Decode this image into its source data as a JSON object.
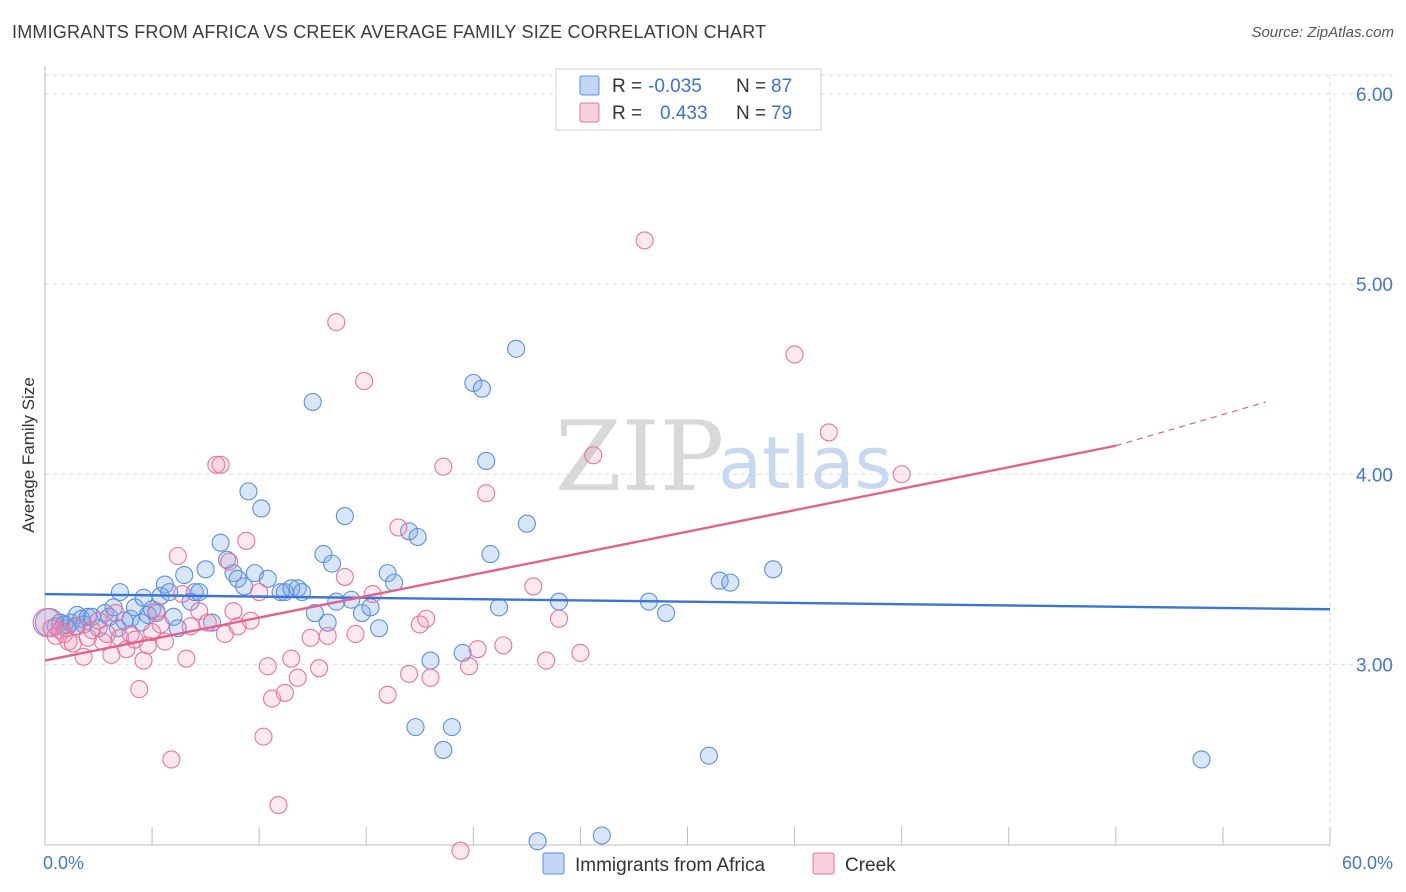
{
  "title": "IMMIGRANTS FROM AFRICA VS CREEK AVERAGE FAMILY SIZE CORRELATION CHART",
  "source": "Source: ZipAtlas.com",
  "watermark": {
    "zip": "ZIP",
    "atlas": "atlas"
  },
  "colors": {
    "blue": "#5b8fdf",
    "blue_fill": "rgba(120,165,235,0.28)",
    "pink": "#e8749c",
    "pink_fill": "rgba(240,150,180,0.22)",
    "axis_text": "#4477cc",
    "grid": "#dddddd"
  },
  "legend": {
    "rows": [
      {
        "r_label": "R =",
        "r_value": "-0.035",
        "n_label": "N =",
        "n_value": "87"
      },
      {
        "r_label": "R =",
        "r_value": "0.433",
        "n_label": "N =",
        "n_value": "79"
      }
    ]
  },
  "chart_data": {
    "type": "scatter",
    "title": "IMMIGRANTS FROM AFRICA VS CREEK AVERAGE FAMILY SIZE CORRELATION CHART",
    "xlabel": "",
    "ylabel": "Average Family Size",
    "xlim": [
      0,
      60
    ],
    "ylim": [
      2.05,
      6.1
    ],
    "x_tick_labels": [
      "0.0%",
      "60.0%"
    ],
    "y_ticks": [
      3.0,
      4.0,
      5.0,
      6.0
    ],
    "y_tick_labels": [
      "3.00",
      "4.00",
      "5.00",
      "6.00"
    ],
    "series": [
      {
        "name": "Immigrants from Africa",
        "color": "blue",
        "r": -0.035,
        "n": 87,
        "trend": {
          "x0": 0,
          "y0": 3.37,
          "x1": 60,
          "y1": 3.29,
          "dash_to": 60
        },
        "points": [
          [
            0.2,
            3.22
          ],
          [
            0.5,
            3.2
          ],
          [
            0.7,
            3.22
          ],
          [
            0.9,
            3.21
          ],
          [
            1.0,
            3.19
          ],
          [
            1.2,
            3.22
          ],
          [
            1.4,
            3.2
          ],
          [
            1.5,
            3.26
          ],
          [
            1.7,
            3.24
          ],
          [
            1.8,
            3.21
          ],
          [
            2.0,
            3.25
          ],
          [
            2.2,
            3.25
          ],
          [
            2.5,
            3.19
          ],
          [
            2.8,
            3.27
          ],
          [
            3.0,
            3.25
          ],
          [
            3.2,
            3.3
          ],
          [
            3.4,
            3.19
          ],
          [
            3.5,
            3.38
          ],
          [
            3.7,
            3.23
          ],
          [
            4.0,
            3.24
          ],
          [
            4.2,
            3.3
          ],
          [
            4.5,
            3.22
          ],
          [
            4.6,
            3.35
          ],
          [
            4.8,
            3.26
          ],
          [
            5.0,
            3.29
          ],
          [
            5.2,
            3.27
          ],
          [
            5.4,
            3.36
          ],
          [
            5.6,
            3.42
          ],
          [
            5.8,
            3.38
          ],
          [
            6.0,
            3.25
          ],
          [
            6.2,
            3.19
          ],
          [
            6.5,
            3.47
          ],
          [
            6.8,
            3.33
          ],
          [
            7.0,
            3.38
          ],
          [
            7.2,
            3.38
          ],
          [
            7.5,
            3.5
          ],
          [
            7.8,
            3.22
          ],
          [
            8.2,
            3.64
          ],
          [
            8.5,
            3.55
          ],
          [
            8.8,
            3.48
          ],
          [
            9.0,
            3.45
          ],
          [
            9.3,
            3.41
          ],
          [
            9.5,
            3.91
          ],
          [
            9.8,
            3.48
          ],
          [
            10.1,
            3.82
          ],
          [
            10.4,
            3.45
          ],
          [
            11.0,
            3.38
          ],
          [
            11.2,
            3.38
          ],
          [
            11.5,
            3.4
          ],
          [
            11.8,
            3.4
          ],
          [
            12.0,
            3.38
          ],
          [
            12.5,
            4.38
          ],
          [
            12.6,
            3.27
          ],
          [
            13.0,
            3.58
          ],
          [
            13.2,
            3.22
          ],
          [
            13.4,
            3.53
          ],
          [
            13.6,
            3.33
          ],
          [
            14.0,
            3.78
          ],
          [
            14.3,
            3.34
          ],
          [
            14.8,
            3.27
          ],
          [
            15.2,
            3.3
          ],
          [
            15.6,
            3.19
          ],
          [
            16.0,
            3.48
          ],
          [
            16.3,
            3.43
          ],
          [
            17.0,
            3.7
          ],
          [
            17.4,
            3.67
          ],
          [
            17.3,
            2.67
          ],
          [
            18.0,
            3.02
          ],
          [
            18.6,
            2.55
          ],
          [
            19.0,
            2.67
          ],
          [
            19.5,
            3.06
          ],
          [
            20.0,
            4.48
          ],
          [
            20.4,
            4.45
          ],
          [
            20.6,
            4.07
          ],
          [
            20.8,
            3.58
          ],
          [
            21.2,
            3.3
          ],
          [
            22.0,
            4.66
          ],
          [
            22.5,
            3.74
          ],
          [
            24.0,
            3.33
          ],
          [
            26.0,
            2.1
          ],
          [
            28.2,
            3.33
          ],
          [
            29.0,
            3.27
          ],
          [
            31.0,
            2.52
          ],
          [
            31.5,
            3.44
          ],
          [
            32.0,
            3.43
          ],
          [
            34.0,
            3.5
          ],
          [
            54.0,
            2.5
          ],
          [
            23.0,
            2.07
          ]
        ]
      },
      {
        "name": "Creek",
        "color": "pink",
        "r": 0.433,
        "n": 79,
        "trend": {
          "x0": 0,
          "y0": 3.02,
          "x1": 50,
          "y1": 4.15,
          "dash_to": 57,
          "dash_y": 4.38
        },
        "points": [
          [
            0.1,
            3.22
          ],
          [
            0.3,
            3.19
          ],
          [
            0.5,
            3.15
          ],
          [
            0.7,
            3.18
          ],
          [
            0.9,
            3.16
          ],
          [
            1.1,
            3.12
          ],
          [
            1.3,
            3.11
          ],
          [
            1.5,
            3.2
          ],
          [
            1.8,
            3.04
          ],
          [
            2.0,
            3.14
          ],
          [
            2.2,
            3.18
          ],
          [
            2.5,
            3.23
          ],
          [
            2.7,
            3.12
          ],
          [
            2.9,
            3.16
          ],
          [
            3.1,
            3.05
          ],
          [
            3.3,
            3.27
          ],
          [
            3.5,
            3.14
          ],
          [
            3.8,
            3.08
          ],
          [
            4.0,
            3.16
          ],
          [
            4.2,
            3.13
          ],
          [
            4.4,
            2.87
          ],
          [
            4.6,
            3.02
          ],
          [
            4.8,
            3.1
          ],
          [
            5.0,
            3.17
          ],
          [
            5.2,
            3.28
          ],
          [
            5.4,
            3.21
          ],
          [
            5.6,
            3.12
          ],
          [
            5.9,
            2.5
          ],
          [
            6.2,
            3.57
          ],
          [
            6.4,
            3.37
          ],
          [
            6.6,
            3.03
          ],
          [
            6.8,
            3.2
          ],
          [
            7.2,
            3.28
          ],
          [
            7.6,
            3.22
          ],
          [
            8.0,
            4.05
          ],
          [
            8.2,
            4.05
          ],
          [
            8.4,
            3.16
          ],
          [
            8.6,
            3.54
          ],
          [
            8.8,
            3.28
          ],
          [
            9.0,
            3.2
          ],
          [
            9.4,
            3.65
          ],
          [
            9.6,
            3.23
          ],
          [
            10.0,
            3.38
          ],
          [
            10.2,
            2.62
          ],
          [
            10.4,
            2.99
          ],
          [
            10.6,
            2.82
          ],
          [
            10.9,
            2.26
          ],
          [
            11.2,
            2.85
          ],
          [
            11.5,
            3.03
          ],
          [
            11.8,
            2.93
          ],
          [
            12.4,
            3.14
          ],
          [
            12.8,
            2.98
          ],
          [
            13.2,
            3.15
          ],
          [
            13.6,
            4.8
          ],
          [
            14.0,
            3.46
          ],
          [
            14.5,
            3.16
          ],
          [
            14.9,
            4.49
          ],
          [
            15.3,
            3.37
          ],
          [
            16.0,
            2.84
          ],
          [
            16.5,
            3.72
          ],
          [
            17.0,
            2.95
          ],
          [
            17.5,
            3.21
          ],
          [
            18.0,
            2.93
          ],
          [
            18.6,
            4.04
          ],
          [
            19.4,
            2.02
          ],
          [
            19.8,
            2.99
          ],
          [
            20.2,
            3.08
          ],
          [
            20.6,
            3.9
          ],
          [
            21.4,
            3.1
          ],
          [
            22.8,
            3.41
          ],
          [
            23.4,
            3.02
          ],
          [
            25.0,
            3.06
          ],
          [
            25.6,
            4.1
          ],
          [
            28.0,
            5.23
          ],
          [
            35.0,
            4.63
          ],
          [
            36.6,
            4.22
          ],
          [
            40.0,
            4.0
          ],
          [
            24.0,
            3.24
          ],
          [
            17.8,
            3.24
          ]
        ]
      }
    ]
  },
  "bottom_legend": {
    "items": [
      {
        "label": "Immigrants from Africa",
        "color": "blue"
      },
      {
        "label": "Creek",
        "color": "pink"
      }
    ]
  }
}
